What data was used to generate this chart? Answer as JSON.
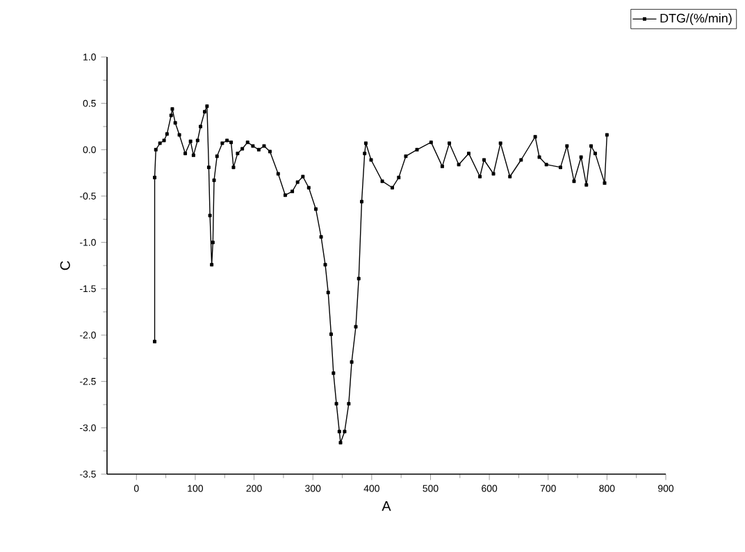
{
  "chart_data": {
    "type": "line",
    "xlabel": "A",
    "ylabel": "C",
    "xlim": [
      -50,
      900
    ],
    "xticks": [
      0,
      100,
      200,
      300,
      400,
      500,
      600,
      700,
      800,
      900
    ],
    "ylim": [
      -3.5,
      1.0
    ],
    "yticks": [
      {
        "value": -3.5,
        "label": "-3.5"
      },
      {
        "value": -3.0,
        "label": "-3.0"
      },
      {
        "value": -2.5,
        "label": "-2.5"
      },
      {
        "value": -2.0,
        "label": "-2.0"
      },
      {
        "value": -1.5,
        "label": "-1.5"
      },
      {
        "value": -1.0,
        "label": "-1.0"
      },
      {
        "value": -0.5,
        "label": "-0.5"
      },
      {
        "value": 0.0,
        "label": "0.0"
      },
      {
        "value": 0.5,
        "label": "0.5"
      },
      {
        "value": 1.0,
        "label": "1.0"
      }
    ],
    "grid": false,
    "legend": "top right",
    "marker": "square",
    "line_style": "solid",
    "series": [
      {
        "name": "DTG/(%/min)",
        "color": "#000000",
        "x": [
          31,
          31,
          33,
          40,
          47,
          52,
          59,
          61,
          66,
          73,
          83,
          92,
          97,
          104,
          109,
          116,
          120,
          123,
          125,
          128,
          130,
          132,
          137,
          146,
          154,
          161,
          165,
          172,
          180,
          189,
          198,
          208,
          217,
          227,
          241,
          253,
          265,
          274,
          283,
          293,
          305,
          314,
          321,
          326,
          331,
          335,
          340,
          345,
          347,
          354,
          361,
          366,
          373,
          378,
          383,
          388,
          390,
          399,
          418,
          435,
          446,
          458,
          477,
          501,
          520,
          532,
          548,
          565,
          584,
          591,
          607,
          619,
          635,
          654,
          678,
          685,
          697,
          721,
          732,
          744,
          756,
          765,
          773,
          780,
          796,
          800
        ],
        "values": [
          -2.07,
          -0.3,
          0.0,
          0.07,
          0.1,
          0.17,
          0.37,
          0.44,
          0.29,
          0.16,
          -0.04,
          0.09,
          -0.06,
          0.1,
          0.25,
          0.41,
          0.47,
          -0.19,
          -0.71,
          -1.24,
          -1.0,
          -0.33,
          -0.07,
          0.07,
          0.1,
          0.08,
          -0.19,
          -0.04,
          0.01,
          0.08,
          0.04,
          0.0,
          0.04,
          -0.02,
          -0.26,
          -0.49,
          -0.45,
          -0.35,
          -0.29,
          -0.41,
          -0.64,
          -0.94,
          -1.24,
          -1.54,
          -1.99,
          -2.41,
          -2.74,
          -3.04,
          -3.16,
          -3.04,
          -2.74,
          -2.29,
          -1.91,
          -1.39,
          -0.56,
          -0.04,
          0.07,
          -0.11,
          -0.34,
          -0.41,
          -0.3,
          -0.07,
          0.0,
          0.08,
          -0.18,
          0.07,
          -0.16,
          -0.04,
          -0.29,
          -0.11,
          -0.26,
          0.07,
          -0.29,
          -0.11,
          0.14,
          -0.08,
          -0.16,
          -0.19,
          0.04,
          -0.34,
          -0.08,
          -0.38,
          0.04,
          -0.04,
          -0.36,
          0.16
        ]
      }
    ]
  }
}
